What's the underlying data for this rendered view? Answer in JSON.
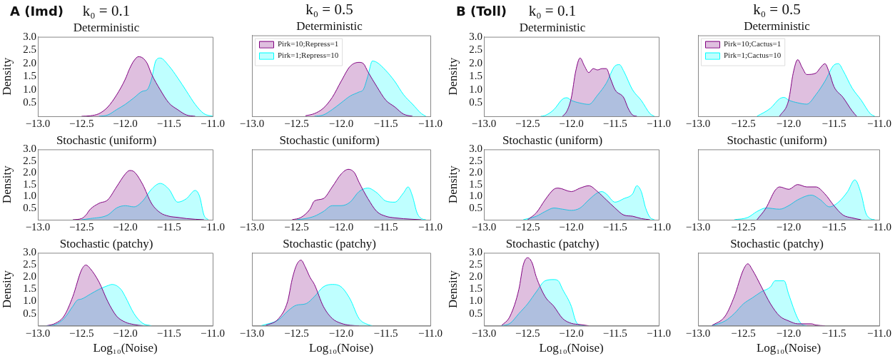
{
  "chart_data": [
    {
      "type": "area",
      "title": "k₀ = 0.1",
      "subtitle": "Deterministic",
      "ylabel": "Density",
      "annotations": [
        "A (Imd)"
      ],
      "xlim": [
        -13,
        -11
      ],
      "xticks": [
        {
          "value": -13,
          "label": "−13.0"
        },
        {
          "value": -12.5,
          "label": "−12.5"
        },
        {
          "value": -12,
          "label": "−12.0"
        },
        {
          "value": -11.5,
          "label": "−11.5"
        },
        {
          "value": -11,
          "label": "−11.0"
        }
      ],
      "ylim": [
        0,
        3
      ],
      "yticks": [
        0.5,
        {
          "value": 1,
          "label": "1.0"
        },
        1.5,
        {
          "value": 2,
          "label": "2.0"
        },
        2.5,
        {
          "value": 3,
          "label": "3.0"
        }
      ],
      "grid": false,
      "series": [
        {
          "color": "#800080",
          "x": [
            -12.5,
            -12.4,
            -12.3,
            -12.2,
            -12.1,
            -12.0,
            -11.95,
            -11.9,
            -11.85,
            -11.8,
            -11.75,
            -11.7,
            -11.6,
            -11.5,
            -11.4,
            -11.3,
            -11.2
          ],
          "values": [
            0,
            0.02,
            0.1,
            0.35,
            0.8,
            1.4,
            1.8,
            2.1,
            2.25,
            2.2,
            2.0,
            1.6,
            1.0,
            0.5,
            0.25,
            0.05,
            0
          ]
        },
        {
          "color": "#00ffff",
          "x": [
            -12.3,
            -12.2,
            -12.1,
            -12.0,
            -11.9,
            -11.8,
            -11.75,
            -11.7,
            -11.65,
            -11.6,
            -11.5,
            -11.4,
            -11.3,
            -11.2,
            -11.1,
            -11.0
          ],
          "values": [
            0,
            0.05,
            0.25,
            0.45,
            0.7,
            0.95,
            1.0,
            1.4,
            2.1,
            2.2,
            1.9,
            1.45,
            0.95,
            0.45,
            0.1,
            0
          ]
        }
      ]
    },
    {
      "type": "area",
      "title": "k₀ = 0.5",
      "subtitle": "Deterministic",
      "legend": "top left",
      "tick_labels": "x",
      "xlim": [
        -13,
        -11
      ],
      "xticks": [
        {
          "value": -13,
          "label": "−13.0"
        },
        {
          "value": -12.5,
          "label": "−12.5"
        },
        {
          "value": -12,
          "label": "−12.0"
        },
        {
          "value": -11.5,
          "label": "−11.5"
        },
        {
          "value": -11,
          "label": "−11.0"
        }
      ],
      "ylim": [
        0,
        3
      ],
      "grid": false,
      "series": [
        {
          "name": "Pirk=10;Repress=1",
          "color": "#800080",
          "x": [
            -12.4,
            -12.3,
            -12.2,
            -12.1,
            -12.0,
            -11.9,
            -11.8,
            -11.75,
            -11.7,
            -11.6,
            -11.5,
            -11.4,
            -11.3,
            -11.2
          ],
          "values": [
            0.02,
            0.1,
            0.3,
            0.7,
            1.3,
            1.85,
            2.0,
            1.95,
            1.65,
            1.1,
            0.6,
            0.35,
            0.08,
            0
          ]
        },
        {
          "name": "Pirk=1;Repress=10",
          "color": "#00ffff",
          "x": [
            -12.3,
            -12.2,
            -12.1,
            -12.0,
            -11.9,
            -11.8,
            -11.75,
            -11.7,
            -11.65,
            -11.6,
            -11.5,
            -11.4,
            -11.3,
            -11.2,
            -11.1,
            -11.05
          ],
          "values": [
            0,
            0.05,
            0.25,
            0.5,
            0.75,
            0.9,
            1.0,
            1.5,
            2.05,
            2.0,
            1.7,
            1.3,
            0.8,
            0.45,
            0.1,
            0
          ]
        }
      ]
    },
    {
      "type": "area",
      "title": "k₀ = 0.1",
      "subtitle": "Deterministic",
      "ylabel": "Density",
      "annotations": [
        "B (Toll)"
      ],
      "xlim": [
        -13,
        -11
      ],
      "xticks": [
        {
          "value": -13,
          "label": "−13.0"
        },
        {
          "value": -12.5,
          "label": "−12.5"
        },
        {
          "value": -12,
          "label": "−12.0"
        },
        {
          "value": -11.5,
          "label": "−11.5"
        },
        {
          "value": -11,
          "label": "−11.0"
        }
      ],
      "ylim": [
        0,
        3
      ],
      "yticks": [
        0.5,
        {
          "value": 1,
          "label": "1.0"
        },
        1.5,
        {
          "value": 2,
          "label": "2.0"
        },
        2.5,
        {
          "value": 3,
          "label": "3.0"
        }
      ],
      "grid": false,
      "series": [
        {
          "color": "#800080",
          "x": [
            -12.1,
            -12.05,
            -12.0,
            -11.95,
            -11.9,
            -11.85,
            -11.8,
            -11.75,
            -11.7,
            -11.65,
            -11.6,
            -11.55,
            -11.5,
            -11.4,
            -11.35,
            -11.3,
            -11.25
          ],
          "values": [
            0,
            0.2,
            0.7,
            1.7,
            2.2,
            1.9,
            1.65,
            1.8,
            1.75,
            1.8,
            1.8,
            1.4,
            1.0,
            0.7,
            0.3,
            0.05,
            0
          ]
        },
        {
          "color": "#00ffff",
          "x": [
            -12.35,
            -12.3,
            -12.2,
            -12.1,
            -12.05,
            -12.0,
            -11.9,
            -11.8,
            -11.7,
            -11.6,
            -11.5,
            -11.45,
            -11.4,
            -11.3,
            -11.2,
            -11.1,
            -11.05
          ],
          "values": [
            0,
            0.03,
            0.25,
            0.65,
            0.7,
            0.6,
            0.5,
            0.45,
            0.8,
            1.25,
            1.9,
            1.95,
            1.7,
            1.0,
            0.6,
            0.1,
            0
          ]
        }
      ]
    },
    {
      "type": "area",
      "title": "k₀ = 0.5",
      "subtitle": "Deterministic",
      "legend": "top left",
      "tick_labels": "x",
      "xlim": [
        -13,
        -11
      ],
      "xticks": [
        {
          "value": -13,
          "label": "−13.0"
        },
        {
          "value": -12.5,
          "label": "−12.5"
        },
        {
          "value": -12,
          "label": "−12.0"
        },
        {
          "value": -11.5,
          "label": "−11.5"
        },
        {
          "value": -11,
          "label": "−11.0"
        }
      ],
      "ylim": [
        0,
        3
      ],
      "grid": false,
      "series": [
        {
          "name": "Pirk=10;Cactus=1",
          "color": "#800080",
          "x": [
            -12.1,
            -12.0,
            -11.95,
            -11.9,
            -11.85,
            -11.8,
            -11.7,
            -11.65,
            -11.6,
            -11.55,
            -11.5,
            -11.4,
            -11.3,
            -11.25
          ],
          "values": [
            0,
            0.6,
            1.6,
            2.1,
            1.8,
            1.55,
            1.6,
            1.8,
            1.95,
            1.6,
            1.1,
            0.7,
            0.2,
            0
          ]
        },
        {
          "name": "Pirk=1;Cactus=10",
          "color": "#00ffff",
          "x": [
            -12.35,
            -12.2,
            -12.1,
            -12.05,
            -12.0,
            -11.9,
            -11.8,
            -11.7,
            -11.6,
            -11.5,
            -11.45,
            -11.4,
            -11.3,
            -11.2,
            -11.1,
            -11.05
          ],
          "values": [
            0,
            0.3,
            0.65,
            0.7,
            0.6,
            0.5,
            0.45,
            0.8,
            1.3,
            1.9,
            1.95,
            1.7,
            1.05,
            0.6,
            0.1,
            0
          ]
        }
      ]
    },
    {
      "type": "area",
      "title": "Stochastic (uniform)",
      "ylabel": "Density",
      "xlim": [
        -13,
        -11
      ],
      "xticks": [
        {
          "value": -13,
          "label": "−13.0"
        },
        {
          "value": -12.5,
          "label": "−12.5"
        },
        {
          "value": -12,
          "label": "−12.0"
        },
        {
          "value": -11.5,
          "label": "−11.5"
        },
        {
          "value": -11,
          "label": "−11.0"
        }
      ],
      "ylim": [
        0,
        3
      ],
      "yticks": [
        0.5,
        {
          "value": 1,
          "label": "1.0"
        },
        1.5,
        {
          "value": 2,
          "label": "2.0"
        },
        2.5,
        {
          "value": 3,
          "label": "3.0"
        }
      ],
      "grid": false,
      "series": [
        {
          "color": "#800080",
          "x": [
            -12.6,
            -12.5,
            -12.45,
            -12.4,
            -12.3,
            -12.2,
            -12.1,
            -12.0,
            -11.95,
            -11.9,
            -11.8,
            -11.7,
            -11.6,
            -11.5,
            -11.4,
            -11.3,
            -11.2,
            -11.1
          ],
          "values": [
            0,
            0.05,
            0.2,
            0.45,
            0.7,
            0.85,
            1.4,
            1.95,
            2.1,
            2.05,
            1.5,
            0.7,
            0.3,
            0.15,
            0.1,
            0.05,
            0.02,
            0
          ]
        },
        {
          "color": "#00ffff",
          "x": [
            -12.5,
            -12.4,
            -12.2,
            -12.1,
            -12.0,
            -11.9,
            -11.8,
            -11.7,
            -11.6,
            -11.5,
            -11.4,
            -11.3,
            -11.2,
            -11.15,
            -11.1,
            -11.05
          ],
          "values": [
            0,
            0.05,
            0.2,
            0.5,
            0.6,
            0.55,
            0.8,
            1.3,
            1.55,
            1.3,
            0.75,
            0.9,
            1.25,
            1.0,
            0.2,
            0
          ]
        }
      ]
    },
    {
      "type": "area",
      "title": "Stochastic (uniform)",
      "tick_labels": "x",
      "xlim": [
        -13,
        -11
      ],
      "xticks": [
        {
          "value": -13,
          "label": "−13.0"
        },
        {
          "value": -12.5,
          "label": "−12.5"
        },
        {
          "value": -12,
          "label": "−12.0"
        },
        {
          "value": -11.5,
          "label": "−11.5"
        },
        {
          "value": -11,
          "label": "−11.0"
        }
      ],
      "ylim": [
        0,
        3
      ],
      "grid": false,
      "series": [
        {
          "color": "#800080",
          "x": [
            -12.55,
            -12.45,
            -12.35,
            -12.3,
            -12.2,
            -12.1,
            -12.0,
            -11.92,
            -11.85,
            -11.8,
            -11.7,
            -11.6,
            -11.5,
            -11.4,
            -11.2,
            -11.1
          ],
          "values": [
            0,
            0.1,
            0.45,
            0.8,
            0.9,
            1.4,
            1.95,
            2.15,
            2.0,
            1.6,
            0.9,
            0.35,
            0.15,
            0.08,
            0.02,
            0
          ]
        },
        {
          "color": "#00ffff",
          "x": [
            -12.5,
            -12.4,
            -12.3,
            -12.2,
            -12.1,
            -12.0,
            -11.9,
            -11.8,
            -11.7,
            -11.6,
            -11.5,
            -11.4,
            -11.3,
            -11.25,
            -11.2,
            -11.15,
            -11.1,
            -11.05
          ],
          "values": [
            0,
            0.05,
            0.15,
            0.35,
            0.6,
            0.6,
            0.75,
            1.2,
            1.35,
            1.15,
            0.8,
            0.75,
            1.15,
            1.4,
            1.0,
            0.3,
            0.05,
            0
          ]
        }
      ]
    },
    {
      "type": "area",
      "title": "Stochastic (uniform)",
      "ylabel": "Density",
      "xlim": [
        -13,
        -11
      ],
      "xticks": [
        {
          "value": -13,
          "label": "−13.0"
        },
        {
          "value": -12.5,
          "label": "−12.5"
        },
        {
          "value": -12,
          "label": "−12.0"
        },
        {
          "value": -11.5,
          "label": "−11.5"
        },
        {
          "value": -11,
          "label": "−11.0"
        }
      ],
      "ylim": [
        0,
        3
      ],
      "yticks": [
        0.5,
        {
          "value": 1,
          "label": "1.0"
        },
        1.5,
        {
          "value": 2,
          "label": "2.0"
        },
        2.5,
        {
          "value": 3,
          "label": "3.0"
        }
      ],
      "grid": false,
      "series": [
        {
          "color": "#800080",
          "x": [
            -12.5,
            -12.4,
            -12.3,
            -12.2,
            -12.15,
            -12.0,
            -11.9,
            -11.8,
            -11.7,
            -11.6,
            -11.5,
            -11.4,
            -11.3,
            -11.2,
            -11.1
          ],
          "values": [
            0,
            0.3,
            0.85,
            1.3,
            1.35,
            1.2,
            1.35,
            1.45,
            1.2,
            0.85,
            0.5,
            0.2,
            0.15,
            0.05,
            0
          ]
        },
        {
          "color": "#00ffff",
          "x": [
            -12.55,
            -12.4,
            -12.3,
            -12.2,
            -12.1,
            -12.0,
            -11.9,
            -11.8,
            -11.7,
            -11.65,
            -11.6,
            -11.5,
            -11.4,
            -11.3,
            -11.25,
            -11.2,
            -11.15,
            -11.1,
            -11.05
          ],
          "values": [
            0,
            0.15,
            0.35,
            0.5,
            0.45,
            0.4,
            0.5,
            0.85,
            1.15,
            1.2,
            1.1,
            0.75,
            0.9,
            1.1,
            1.45,
            1.2,
            0.5,
            0.1,
            0
          ]
        }
      ]
    },
    {
      "type": "area",
      "title": "Stochastic (uniform)",
      "tick_labels": "x",
      "xlim": [
        -13,
        -11
      ],
      "xticks": [
        {
          "value": -13,
          "label": "−13.0"
        },
        {
          "value": -12.5,
          "label": "−12.5"
        },
        {
          "value": -12,
          "label": "−12.0"
        },
        {
          "value": -11.5,
          "label": "−11.5"
        },
        {
          "value": -11,
          "label": "−11.0"
        }
      ],
      "ylim": [
        0,
        3
      ],
      "grid": false,
      "series": [
        {
          "color": "#800080",
          "x": [
            -12.35,
            -12.25,
            -12.15,
            -12.1,
            -12.0,
            -11.9,
            -11.8,
            -11.7,
            -11.6,
            -11.5,
            -11.4,
            -11.3,
            -11.2
          ],
          "values": [
            0,
            0.5,
            1.25,
            1.4,
            1.3,
            1.5,
            1.4,
            1.4,
            1.1,
            0.6,
            0.2,
            0.08,
            0
          ]
        },
        {
          "color": "#00ffff",
          "x": [
            -12.6,
            -12.45,
            -12.35,
            -12.25,
            -12.1,
            -12.0,
            -11.9,
            -11.75,
            -11.65,
            -11.55,
            -11.45,
            -11.35,
            -11.27,
            -11.2,
            -11.15,
            -11.1,
            -11.05
          ],
          "values": [
            0,
            0.1,
            0.35,
            0.5,
            0.45,
            0.6,
            0.85,
            1.05,
            0.85,
            0.55,
            0.75,
            1.2,
            1.7,
            1.1,
            0.3,
            0.05,
            0
          ]
        }
      ]
    },
    {
      "type": "area",
      "title": "Stochastic (patchy)",
      "ylabel": "Density",
      "xlabel": "Log₁₀(Noise)",
      "xlim": [
        -13,
        -11
      ],
      "xticks": [
        {
          "value": -13,
          "label": "−13.0"
        },
        {
          "value": -12.5,
          "label": "−12.5"
        },
        {
          "value": -12,
          "label": "−12.0"
        },
        {
          "value": -11.5,
          "label": "−11.5"
        },
        {
          "value": -11,
          "label": "−11.0"
        }
      ],
      "ylim": [
        0,
        3
      ],
      "yticks": [
        0.5,
        {
          "value": 1,
          "label": "1.0"
        },
        1.5,
        {
          "value": 2,
          "label": "2.0"
        },
        2.5,
        {
          "value": 3,
          "label": "3.0"
        }
      ],
      "grid": false,
      "series": [
        {
          "color": "#800080",
          "x": [
            -12.9,
            -12.8,
            -12.7,
            -12.6,
            -12.5,
            -12.45,
            -12.4,
            -12.3,
            -12.2,
            -12.1,
            -12.0,
            -11.9,
            -11.8
          ],
          "values": [
            0,
            0.1,
            0.4,
            1.2,
            2.3,
            2.5,
            2.35,
            1.8,
            1.0,
            0.4,
            0.15,
            0.05,
            0
          ]
        },
        {
          "color": "#00ffff",
          "x": [
            -12.9,
            -12.8,
            -12.7,
            -12.6,
            -12.55,
            -12.5,
            -12.4,
            -12.3,
            -12.2,
            -12.15,
            -12.05,
            -12.0,
            -11.9,
            -11.8,
            -11.7
          ],
          "values": [
            0,
            0.05,
            0.3,
            0.8,
            1.05,
            1.1,
            1.3,
            1.5,
            1.65,
            1.7,
            1.5,
            1.2,
            0.5,
            0.1,
            0
          ]
        }
      ]
    },
    {
      "type": "area",
      "title": "Stochastic (patchy)",
      "xlabel": "Log₁₀(Noise)",
      "tick_labels": "x",
      "xlim": [
        -13,
        -11
      ],
      "xticks": [
        {
          "value": -13,
          "label": "−13.0"
        },
        {
          "value": -12.5,
          "label": "−12.5"
        },
        {
          "value": -12,
          "label": "−12.0"
        },
        {
          "value": -11.5,
          "label": "−11.5"
        },
        {
          "value": -11,
          "label": "−11.0"
        }
      ],
      "ylim": [
        0,
        3
      ],
      "grid": false,
      "series": [
        {
          "color": "#800080",
          "x": [
            -12.85,
            -12.7,
            -12.6,
            -12.55,
            -12.5,
            -12.45,
            -12.4,
            -12.35,
            -12.3,
            -12.2,
            -12.1,
            -12.0,
            -11.9,
            -11.8
          ],
          "values": [
            0,
            0.3,
            1.0,
            1.9,
            2.5,
            2.7,
            2.4,
            2.0,
            1.7,
            0.8,
            0.3,
            0.1,
            0.02,
            0
          ]
        },
        {
          "color": "#00ffff",
          "x": [
            -12.9,
            -12.7,
            -12.6,
            -12.5,
            -12.4,
            -12.3,
            -12.2,
            -12.1,
            -12.0,
            -11.9,
            -11.8,
            -11.7,
            -11.65
          ],
          "values": [
            0,
            0.25,
            0.6,
            0.85,
            0.9,
            1.2,
            1.6,
            1.7,
            1.6,
            1.1,
            0.3,
            0.05,
            0
          ]
        }
      ]
    },
    {
      "type": "area",
      "title": "Stochastic (patchy)",
      "ylabel": "Density",
      "xlabel": "Log₁₀(Noise)",
      "xlim": [
        -13,
        -11
      ],
      "xticks": [
        {
          "value": -13,
          "label": "−13.0"
        },
        {
          "value": -12.5,
          "label": "−12.5"
        },
        {
          "value": -12,
          "label": "−12.0"
        },
        {
          "value": -11.5,
          "label": "−11.5"
        },
        {
          "value": -11,
          "label": "−11.0"
        }
      ],
      "ylim": [
        0,
        3
      ],
      "yticks": [
        0.5,
        {
          "value": 1,
          "label": "1.0"
        },
        1.5,
        {
          "value": 2,
          "label": "2.0"
        },
        2.5,
        {
          "value": 3,
          "label": "3.0"
        }
      ],
      "grid": false,
      "series": [
        {
          "color": "#800080",
          "x": [
            -12.8,
            -12.7,
            -12.6,
            -12.55,
            -12.5,
            -12.45,
            -12.4,
            -12.3,
            -12.2,
            -12.1,
            -12.0,
            -11.9,
            -11.8
          ],
          "values": [
            0,
            0.4,
            1.5,
            2.5,
            2.8,
            2.6,
            2.0,
            1.2,
            0.8,
            0.3,
            0.1,
            0.05,
            0
          ]
        },
        {
          "color": "#00ffff",
          "x": [
            -12.8,
            -12.7,
            -12.6,
            -12.5,
            -12.4,
            -12.3,
            -12.2,
            -12.15,
            -12.1,
            -12.0,
            -11.95,
            -11.9,
            -11.85
          ],
          "values": [
            0,
            0.1,
            0.5,
            0.9,
            1.4,
            1.85,
            1.9,
            1.85,
            1.5,
            0.8,
            0.2,
            0.02,
            0
          ]
        }
      ]
    },
    {
      "type": "area",
      "title": "Stochastic (patchy)",
      "xlabel": "Log₁₀(Noise)",
      "tick_labels": "x",
      "xlim": [
        -13,
        -11
      ],
      "xticks": [
        {
          "value": -13,
          "label": "−13.0"
        },
        {
          "value": -12.5,
          "label": "−12.5"
        },
        {
          "value": -12,
          "label": "−12.0"
        },
        {
          "value": -11.5,
          "label": "−11.5"
        },
        {
          "value": -11,
          "label": "−11.0"
        }
      ],
      "ylim": [
        0,
        3
      ],
      "grid": false,
      "series": [
        {
          "color": "#800080",
          "x": [
            -12.85,
            -12.7,
            -12.6,
            -12.5,
            -12.45,
            -12.4,
            -12.3,
            -12.2,
            -12.1,
            -12.0,
            -11.9,
            -11.75,
            -11.7,
            -11.6
          ],
          "values": [
            0,
            0.4,
            1.2,
            2.3,
            2.55,
            2.3,
            1.6,
            0.9,
            0.4,
            0.2,
            0.08,
            0.08,
            0.03,
            0
          ]
        },
        {
          "color": "#00ffff",
          "x": [
            -12.85,
            -12.7,
            -12.6,
            -12.5,
            -12.4,
            -12.3,
            -12.2,
            -12.15,
            -12.05,
            -12.0,
            -11.9,
            -11.85,
            -11.8
          ],
          "values": [
            0,
            0.2,
            0.5,
            0.9,
            1.15,
            1.4,
            1.6,
            1.85,
            1.85,
            1.3,
            0.3,
            0.05,
            0
          ]
        }
      ]
    }
  ]
}
